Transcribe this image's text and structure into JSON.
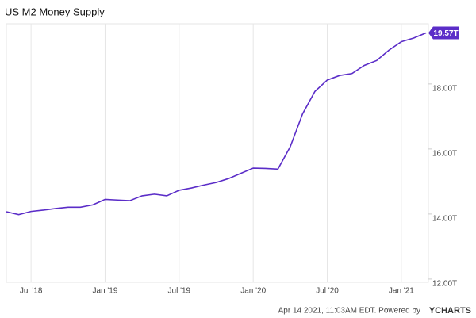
{
  "chart_data": {
    "type": "line",
    "title": "US M2 Money Supply",
    "x": [
      "2018-05",
      "2018-06",
      "2018-07",
      "2018-08",
      "2018-09",
      "2018-10",
      "2018-11",
      "2018-12",
      "2019-01",
      "2019-02",
      "2019-03",
      "2019-04",
      "2019-05",
      "2019-06",
      "2019-07",
      "2019-08",
      "2019-09",
      "2019-10",
      "2019-11",
      "2019-12",
      "2020-01",
      "2020-02",
      "2020-03",
      "2020-04",
      "2020-05",
      "2020-06",
      "2020-07",
      "2020-08",
      "2020-09",
      "2020-10",
      "2020-11",
      "2020-12",
      "2021-01",
      "2021-02",
      "2021-03"
    ],
    "series": [
      {
        "name": "US M2 Money Supply",
        "color": "#5b2dc8",
        "values": [
          14.07,
          13.98,
          14.08,
          14.12,
          14.17,
          14.21,
          14.21,
          14.28,
          14.45,
          14.43,
          14.41,
          14.56,
          14.61,
          14.56,
          14.73,
          14.8,
          14.89,
          14.97,
          15.09,
          15.25,
          15.41,
          15.4,
          15.38,
          16.07,
          17.08,
          17.77,
          18.12,
          18.26,
          18.32,
          18.57,
          18.72,
          19.04,
          19.3,
          19.41,
          19.57
        ],
        "value_labels": [
          null,
          null,
          null,
          null,
          null,
          null,
          null,
          null,
          null,
          null,
          null,
          null,
          null,
          null,
          null,
          null,
          null,
          null,
          null,
          null,
          null,
          null,
          null,
          null,
          null,
          null,
          null,
          null,
          null,
          null,
          null,
          null,
          null,
          null,
          "19.57T"
        ]
      }
    ],
    "xlim": [
      "2018-05",
      "2021-03"
    ],
    "xticks": [
      {
        "value": "2018-07",
        "label": "Jul '18"
      },
      {
        "value": "2019-01",
        "label": "Jan '19"
      },
      {
        "value": "2019-07",
        "label": "Jul '19"
      },
      {
        "value": "2020-01",
        "label": "Jan '20"
      },
      {
        "value": "2020-07",
        "label": "Jul '20"
      },
      {
        "value": "2021-01",
        "label": "Jan '21"
      }
    ],
    "ylim": [
      11.9,
      19.85
    ],
    "yticks": [
      {
        "value": 12,
        "label": "12.00T"
      },
      {
        "value": 14,
        "label": "14.00T"
      },
      {
        "value": 16,
        "label": "16.00T"
      },
      {
        "value": 18,
        "label": "18.00T"
      }
    ],
    "grid": "x",
    "footer": "Apr 14 2021, 11:03AM EDT. Powered by",
    "brand": "YCHARTS"
  }
}
